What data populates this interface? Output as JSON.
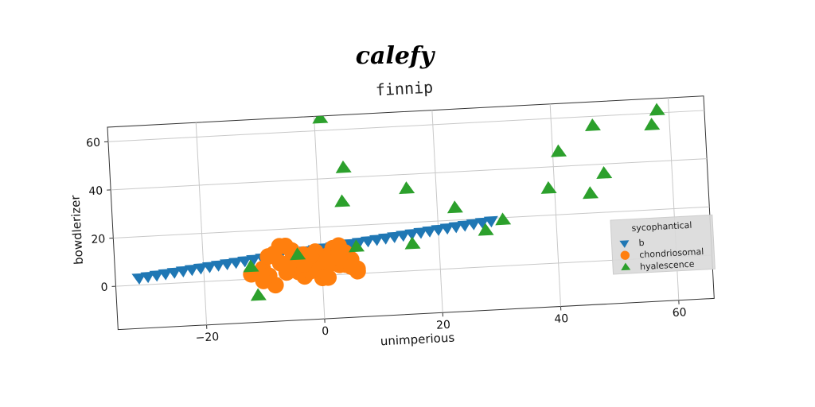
{
  "figure": {
    "suptitle": "calefy"
  },
  "chart_data": {
    "type": "scatter",
    "title": "finnip",
    "xlabel": "unimperious",
    "ylabel": "bowdlerizer",
    "xlim": [
      -35,
      66
    ],
    "ylim": [
      -18,
      66
    ],
    "xticks": [
      -20,
      0,
      20,
      40,
      60
    ],
    "yticks": [
      0,
      20,
      40,
      60
    ],
    "grid": true,
    "legend": {
      "title": "sycophantical",
      "placement": "bottom-right"
    },
    "series": [
      {
        "name": "b",
        "marker": "triangle-down",
        "color": "#1f77b4",
        "x": [
          -31.0,
          -29.5,
          -28.0,
          -26.5,
          -25.0,
          -23.5,
          -22.0,
          -20.5,
          -19.0,
          -17.5,
          -16.0,
          -14.5,
          -13.0,
          -11.5,
          -10.0,
          -8.5,
          -7.0,
          -5.5,
          -4.0,
          -2.5,
          -1.0,
          0.5,
          2.0,
          3.5,
          5.0,
          6.5,
          8.0,
          9.5,
          11.0,
          12.5,
          14.0,
          15.5,
          17.0,
          18.5,
          20.0,
          21.5,
          23.0,
          24.5,
          26.0,
          27.5,
          29.0
        ],
        "y": [
          3.0,
          3.4,
          3.8,
          4.2,
          4.6,
          5.0,
          5.4,
          5.8,
          6.2,
          6.6,
          7.0,
          7.4,
          7.8,
          8.2,
          8.6,
          9.0,
          9.4,
          9.8,
          10.2,
          10.6,
          11.0,
          11.4,
          11.8,
          12.2,
          12.6,
          13.0,
          13.4,
          13.8,
          14.2,
          14.6,
          15.0,
          15.4,
          15.8,
          16.2,
          16.6,
          17.0,
          17.4,
          17.8,
          18.2,
          18.6,
          19.0
        ]
      },
      {
        "name": "chondriosomal",
        "marker": "circle",
        "color": "#ff7f0e",
        "x": [
          -12,
          -10,
          -9,
          -8,
          -7,
          -6,
          -5,
          -4,
          -3,
          -2,
          -1,
          0,
          1,
          2,
          3,
          4,
          5,
          6,
          -9,
          -7,
          -5,
          -3,
          -1,
          1,
          3,
          5,
          -8,
          -6,
          -4,
          -2,
          0,
          2,
          4,
          6,
          -10,
          -6,
          0,
          4,
          -2,
          3,
          -3,
          1,
          5,
          -5
        ],
        "y": [
          2,
          4,
          1,
          -3,
          6,
          13,
          7,
          2,
          9,
          5,
          10,
          3,
          8,
          11,
          4,
          7,
          6,
          1,
          9,
          13,
          5,
          0,
          4,
          7,
          12,
          3,
          10,
          2,
          6,
          8,
          0,
          5,
          9,
          2,
          -1,
          3,
          -1,
          4,
          2,
          7,
          5,
          -1,
          3,
          11
        ]
      },
      {
        "name": "hyalescence",
        "marker": "triangle-up",
        "color": "#2ca02c",
        "x": [
          -12,
          -11,
          -4,
          1,
          4,
          4.5,
          6,
          15,
          15.5,
          23,
          28,
          31,
          39,
          41,
          46,
          47,
          48,
          48.5,
          57,
          58
        ],
        "y": [
          5,
          -7,
          9,
          65,
          30,
          44,
          11,
          34,
          11,
          25,
          15,
          19,
          31,
          46,
          28,
          56,
          71,
          36,
          55,
          61
        ]
      }
    ]
  }
}
